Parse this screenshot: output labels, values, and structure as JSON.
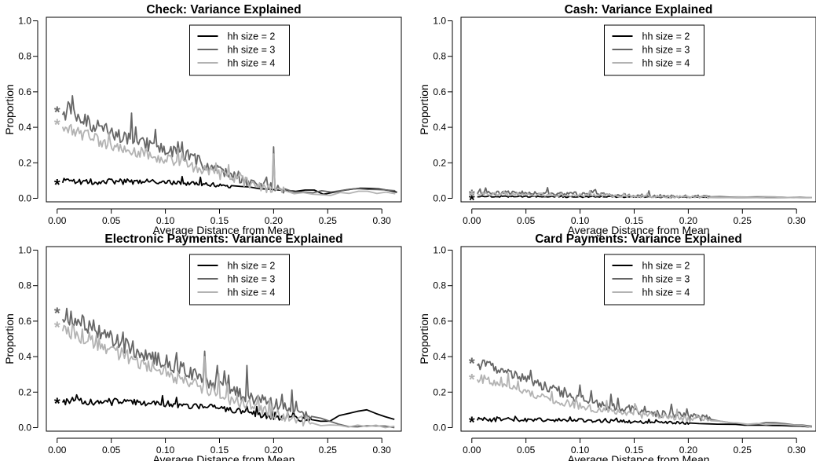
{
  "chart_data": [
    {
      "type": "line",
      "title": "Check: Variance Explained",
      "xlabel": "Average Distance from Mean",
      "ylabel": "Proportion",
      "xlim": [
        -0.01,
        0.318
      ],
      "ylim": [
        -0.02,
        1.02
      ],
      "xticks": [
        "0.00",
        "0.05",
        "0.10",
        "0.15",
        "0.20",
        "0.25",
        "0.30"
      ],
      "yticks": [
        "0.0",
        "0.2",
        "0.4",
        "0.6",
        "0.8",
        "1.0"
      ],
      "legend_position": "top-center",
      "series": [
        {
          "name": "hh size = 2",
          "color": "#000000",
          "star": 0.09,
          "points": [
            [
              0.005,
              0.095
            ],
            [
              0.02,
              0.093
            ],
            [
              0.04,
              0.095
            ],
            [
              0.06,
              0.094
            ],
            [
              0.08,
              0.095
            ],
            [
              0.1,
              0.09
            ],
            [
              0.12,
              0.085
            ],
            [
              0.14,
              0.08
            ],
            [
              0.15,
              0.075
            ],
            [
              0.16,
              0.07
            ],
            [
              0.18,
              0.06
            ],
            [
              0.2,
              0.05
            ],
            [
              0.22,
              0.04
            ],
            [
              0.235,
              0.055
            ],
            [
              0.245,
              0.02
            ],
            [
              0.26,
              0.04
            ],
            [
              0.285,
              0.06
            ],
            [
              0.315,
              0.035
            ]
          ],
          "noise": 0.018,
          "noise_end": 0.16,
          "spikes": []
        },
        {
          "name": "hh size = 3",
          "color": "#666666",
          "star": 0.5,
          "points": [
            [
              0.005,
              0.49
            ],
            [
              0.02,
              0.45
            ],
            [
              0.04,
              0.39
            ],
            [
              0.06,
              0.35
            ],
            [
              0.08,
              0.31
            ],
            [
              0.1,
              0.28
            ],
            [
              0.12,
              0.24
            ],
            [
              0.14,
              0.18
            ],
            [
              0.16,
              0.14
            ],
            [
              0.18,
              0.09
            ],
            [
              0.2,
              0.06
            ],
            [
              0.22,
              0.04
            ],
            [
              0.25,
              0.035
            ],
            [
              0.28,
              0.055
            ],
            [
              0.315,
              0.035
            ]
          ],
          "noise": 0.045,
          "noise_end": 0.21,
          "spikes": [
            [
              0.069,
              0.48
            ],
            [
              0.2,
              0.29
            ]
          ]
        },
        {
          "name": "hh size = 4",
          "color": "#b3b3b3",
          "star": 0.43,
          "points": [
            [
              0.005,
              0.42
            ],
            [
              0.02,
              0.37
            ],
            [
              0.04,
              0.32
            ],
            [
              0.06,
              0.28
            ],
            [
              0.08,
              0.25
            ],
            [
              0.1,
              0.22
            ],
            [
              0.12,
              0.19
            ],
            [
              0.14,
              0.15
            ],
            [
              0.16,
              0.12
            ],
            [
              0.18,
              0.08
            ],
            [
              0.2,
              0.05
            ],
            [
              0.22,
              0.03
            ],
            [
              0.25,
              0.02
            ],
            [
              0.28,
              0.04
            ],
            [
              0.315,
              0.025
            ]
          ],
          "noise": 0.04,
          "noise_end": 0.21,
          "spikes": [
            [
              0.2,
              0.25
            ]
          ]
        }
      ]
    },
    {
      "type": "line",
      "title": "Cash: Variance Explained",
      "xlabel": "Average Distance from Mean",
      "ylabel": "Proportion",
      "xlim": [
        -0.01,
        0.318
      ],
      "ylim": [
        -0.02,
        1.02
      ],
      "xticks": [
        "0.00",
        "0.05",
        "0.10",
        "0.15",
        "0.20",
        "0.25",
        "0.30"
      ],
      "yticks": [
        "0.0",
        "0.2",
        "0.4",
        "0.6",
        "0.8",
        "1.0"
      ],
      "legend_position": "top-center",
      "series": [
        {
          "name": "hh size = 2",
          "color": "#000000",
          "star": 0.005,
          "points": [
            [
              0.005,
              0.01
            ],
            [
              0.05,
              0.01
            ],
            [
              0.1,
              0.008
            ],
            [
              0.15,
              0.008
            ],
            [
              0.2,
              0.006
            ],
            [
              0.25,
              0.005
            ],
            [
              0.315,
              0.005
            ]
          ],
          "noise": 0.004,
          "noise_end": 0.2,
          "spikes": []
        },
        {
          "name": "hh size = 3",
          "color": "#666666",
          "star": 0.03,
          "points": [
            [
              0.005,
              0.03
            ],
            [
              0.05,
              0.03
            ],
            [
              0.1,
              0.025
            ],
            [
              0.15,
              0.015
            ],
            [
              0.2,
              0.01
            ],
            [
              0.25,
              0.008
            ],
            [
              0.315,
              0.005
            ]
          ],
          "noise": 0.012,
          "noise_end": 0.22,
          "spikes": [
            [
              0.07,
              0.06
            ]
          ]
        },
        {
          "name": "hh size = 4",
          "color": "#b3b3b3",
          "star": 0.025,
          "points": [
            [
              0.005,
              0.025
            ],
            [
              0.05,
              0.022
            ],
            [
              0.1,
              0.018
            ],
            [
              0.15,
              0.012
            ],
            [
              0.2,
              0.008
            ],
            [
              0.25,
              0.005
            ],
            [
              0.315,
              0.005
            ]
          ],
          "noise": 0.01,
          "noise_end": 0.22,
          "spikes": []
        }
      ]
    },
    {
      "type": "line",
      "title": "Electronic Payments: Variance Explained",
      "xlabel": "Average Distance from Mean",
      "ylabel": "Proportion",
      "xlim": [
        -0.01,
        0.318
      ],
      "ylim": [
        -0.02,
        1.02
      ],
      "xticks": [
        "0.00",
        "0.05",
        "0.10",
        "0.15",
        "0.20",
        "0.25",
        "0.30"
      ],
      "yticks": [
        "0.0",
        "0.2",
        "0.4",
        "0.6",
        "0.8",
        "1.0"
      ],
      "legend_position": "top-center",
      "series": [
        {
          "name": "hh size = 2",
          "color": "#000000",
          "star": 0.15,
          "points": [
            [
              0.005,
              0.15
            ],
            [
              0.02,
              0.15
            ],
            [
              0.05,
              0.145
            ],
            [
              0.08,
              0.14
            ],
            [
              0.1,
              0.135
            ],
            [
              0.12,
              0.125
            ],
            [
              0.14,
              0.115
            ],
            [
              0.16,
              0.1
            ],
            [
              0.18,
              0.08
            ],
            [
              0.2,
              0.06
            ],
            [
              0.22,
              0.05
            ],
            [
              0.24,
              0.04
            ],
            [
              0.25,
              0.03
            ],
            [
              0.26,
              0.07
            ],
            [
              0.285,
              0.1
            ],
            [
              0.315,
              0.04
            ]
          ],
          "noise": 0.022,
          "noise_end": 0.235,
          "spikes": [
            [
              0.097,
              0.18
            ],
            [
              0.11,
              0.17
            ]
          ]
        },
        {
          "name": "hh size = 3",
          "color": "#666666",
          "star": 0.66,
          "points": [
            [
              0.005,
              0.63
            ],
            [
              0.02,
              0.6
            ],
            [
              0.04,
              0.54
            ],
            [
              0.06,
              0.47
            ],
            [
              0.08,
              0.42
            ],
            [
              0.1,
              0.37
            ],
            [
              0.12,
              0.32
            ],
            [
              0.14,
              0.26
            ],
            [
              0.16,
              0.21
            ],
            [
              0.18,
              0.17
            ],
            [
              0.2,
              0.13
            ],
            [
              0.22,
              0.1
            ],
            [
              0.24,
              0.06
            ],
            [
              0.25,
              0.03
            ],
            [
              0.27,
              0.01
            ],
            [
              0.315,
              0.005
            ]
          ],
          "noise": 0.05,
          "noise_end": 0.235,
          "spikes": [
            [
              0.136,
              0.43
            ],
            [
              0.175,
              0.35
            ],
            [
              0.155,
              0.32
            ]
          ]
        },
        {
          "name": "hh size = 4",
          "color": "#b3b3b3",
          "star": 0.58,
          "points": [
            [
              0.005,
              0.56
            ],
            [
              0.02,
              0.52
            ],
            [
              0.04,
              0.47
            ],
            [
              0.06,
              0.41
            ],
            [
              0.08,
              0.36
            ],
            [
              0.1,
              0.31
            ],
            [
              0.12,
              0.26
            ],
            [
              0.14,
              0.21
            ],
            [
              0.16,
              0.16
            ],
            [
              0.18,
              0.12
            ],
            [
              0.2,
              0.08
            ],
            [
              0.22,
              0.05
            ],
            [
              0.24,
              0.02
            ],
            [
              0.26,
              0.01
            ],
            [
              0.315,
              0.005
            ]
          ],
          "noise": 0.045,
          "noise_end": 0.235,
          "spikes": [
            [
              0.136,
              0.4
            ]
          ]
        }
      ]
    },
    {
      "type": "line",
      "title": "Card Payments: Variance Explained",
      "xlabel": "Average Distance from Mean",
      "ylabel": "Proportion",
      "xlim": [
        -0.01,
        0.318
      ],
      "ylim": [
        -0.02,
        1.02
      ],
      "xticks": [
        "0.00",
        "0.05",
        "0.10",
        "0.15",
        "0.20",
        "0.25",
        "0.30"
      ],
      "yticks": [
        "0.0",
        "0.2",
        "0.4",
        "0.6",
        "0.8",
        "1.0"
      ],
      "legend_position": "top-center",
      "series": [
        {
          "name": "hh size = 2",
          "color": "#000000",
          "star": 0.045,
          "points": [
            [
              0.005,
              0.045
            ],
            [
              0.03,
              0.045
            ],
            [
              0.06,
              0.045
            ],
            [
              0.09,
              0.042
            ],
            [
              0.12,
              0.038
            ],
            [
              0.15,
              0.033
            ],
            [
              0.18,
              0.028
            ],
            [
              0.2,
              0.025
            ],
            [
              0.23,
              0.02
            ],
            [
              0.26,
              0.015
            ],
            [
              0.29,
              0.012
            ],
            [
              0.315,
              0.005
            ]
          ],
          "noise": 0.012,
          "noise_end": 0.2,
          "spikes": []
        },
        {
          "name": "hh size = 3",
          "color": "#666666",
          "star": 0.375,
          "points": [
            [
              0.005,
              0.36
            ],
            [
              0.02,
              0.34
            ],
            [
              0.04,
              0.3
            ],
            [
              0.06,
              0.25
            ],
            [
              0.08,
              0.2
            ],
            [
              0.1,
              0.16
            ],
            [
              0.12,
              0.13
            ],
            [
              0.14,
              0.11
            ],
            [
              0.16,
              0.09
            ],
            [
              0.18,
              0.075
            ],
            [
              0.2,
              0.065
            ],
            [
              0.22,
              0.05
            ],
            [
              0.25,
              0.02
            ],
            [
              0.28,
              0.03
            ],
            [
              0.315,
              0.01
            ]
          ],
          "noise": 0.03,
          "noise_end": 0.22,
          "spikes": [
            [
              0.1,
              0.24
            ]
          ]
        },
        {
          "name": "hh size = 4",
          "color": "#b3b3b3",
          "star": 0.285,
          "points": [
            [
              0.005,
              0.28
            ],
            [
              0.02,
              0.26
            ],
            [
              0.04,
              0.22
            ],
            [
              0.06,
              0.18
            ],
            [
              0.08,
              0.15
            ],
            [
              0.1,
              0.12
            ],
            [
              0.12,
              0.1
            ],
            [
              0.14,
              0.085
            ],
            [
              0.16,
              0.07
            ],
            [
              0.18,
              0.06
            ],
            [
              0.2,
              0.05
            ],
            [
              0.22,
              0.04
            ],
            [
              0.25,
              0.02
            ],
            [
              0.28,
              0.02
            ],
            [
              0.315,
              0.005
            ]
          ],
          "noise": 0.025,
          "noise_end": 0.22,
          "spikes": []
        }
      ]
    }
  ]
}
